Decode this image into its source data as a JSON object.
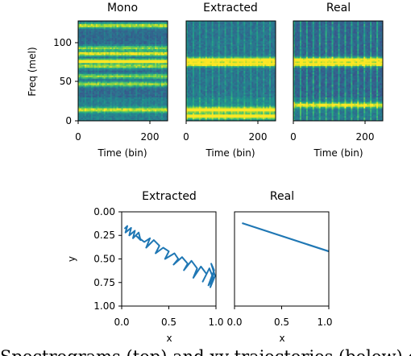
{
  "colors": {
    "viridis_stops": [
      "#440154",
      "#472c7a",
      "#3b518b",
      "#2c718e",
      "#21908d",
      "#27ad81",
      "#5cc863",
      "#aadc32",
      "#fde725"
    ],
    "trajectory": "#1f77b4"
  },
  "chart_data": [
    {
      "type": "heatmap",
      "title": "Mono",
      "xlabel": "Time (bin)",
      "ylabel": "Freq (mel)",
      "xlim": [
        0,
        250
      ],
      "ylim": [
        0,
        128
      ],
      "xticks": [
        "0",
        "200"
      ],
      "yticks": [
        "0",
        "50",
        "100"
      ],
      "colormap": "viridis",
      "bands": [
        {
          "mel": 122,
          "intensity": 0.65
        },
        {
          "mel": 93,
          "intensity": 0.55
        },
        {
          "mel": 86,
          "intensity": 0.75
        },
        {
          "mel": 76,
          "intensity": 0.95
        },
        {
          "mel": 70,
          "intensity": 0.6
        },
        {
          "mel": 57,
          "intensity": 0.55
        },
        {
          "mel": 47,
          "intensity": 0.6
        },
        {
          "mel": 14,
          "intensity": 0.6
        }
      ]
    },
    {
      "type": "heatmap",
      "title": "Extracted",
      "xlabel": "Time (bin)",
      "xlim": [
        0,
        250
      ],
      "ylim": [
        0,
        128
      ],
      "xticks": [
        "0",
        "200"
      ],
      "colormap": "viridis",
      "bands": [
        {
          "mel": 78,
          "intensity": 0.85
        },
        {
          "mel": 73,
          "intensity": 0.95
        },
        {
          "mel": 14,
          "intensity": 0.9
        },
        {
          "mel": 6,
          "intensity": 0.8
        }
      ]
    },
    {
      "type": "heatmap",
      "title": "Real",
      "xlabel": "Time (bin)",
      "xlim": [
        0,
        250
      ],
      "ylim": [
        0,
        128
      ],
      "xticks": [
        "0",
        "200"
      ],
      "colormap": "viridis",
      "bands": [
        {
          "mel": 78,
          "intensity": 0.9
        },
        {
          "mel": 73,
          "intensity": 1.0
        },
        {
          "mel": 20,
          "intensity": 0.7
        }
      ]
    },
    {
      "type": "line",
      "title": "Extracted",
      "xlabel": "x",
      "ylabel": "y",
      "xlim": [
        0,
        1
      ],
      "ylim": [
        1,
        0
      ],
      "xticks": [
        "0.0",
        "0.5",
        "1.0"
      ],
      "yticks": [
        "0.00",
        "0.25",
        "0.50",
        "0.75",
        "1.00"
      ],
      "series": [
        {
          "x": [
            0.03,
            0.06,
            0.04,
            0.1,
            0.08,
            0.14,
            0.12,
            0.18,
            0.2,
            0.16,
            0.24,
            0.3,
            0.26,
            0.34,
            0.4,
            0.36,
            0.44,
            0.5,
            0.46,
            0.56,
            0.6,
            0.55,
            0.64,
            0.7,
            0.66,
            0.74,
            0.8,
            0.76,
            0.84,
            0.9,
            0.86,
            0.93,
            0.97,
            0.92,
            0.98,
            0.95,
            0.99,
            0.94,
            0.97
          ],
          "y": [
            0.18,
            0.15,
            0.22,
            0.17,
            0.25,
            0.2,
            0.28,
            0.22,
            0.3,
            0.26,
            0.32,
            0.28,
            0.38,
            0.3,
            0.36,
            0.44,
            0.38,
            0.42,
            0.5,
            0.44,
            0.5,
            0.56,
            0.48,
            0.55,
            0.62,
            0.52,
            0.6,
            0.7,
            0.58,
            0.66,
            0.74,
            0.6,
            0.7,
            0.78,
            0.62,
            0.55,
            0.68,
            0.8,
            0.66
          ]
        }
      ]
    },
    {
      "type": "line",
      "title": "Real",
      "xlabel": "x",
      "xlim": [
        0,
        1
      ],
      "ylim": [
        1,
        0
      ],
      "xticks": [
        "0.0",
        "0.5",
        "1.0"
      ],
      "series": [
        {
          "x": [
            0.08,
            1.0
          ],
          "y": [
            0.12,
            0.42
          ]
        }
      ]
    }
  ],
  "caption": "Spectrograms (top) and xy trajectories (below) of"
}
